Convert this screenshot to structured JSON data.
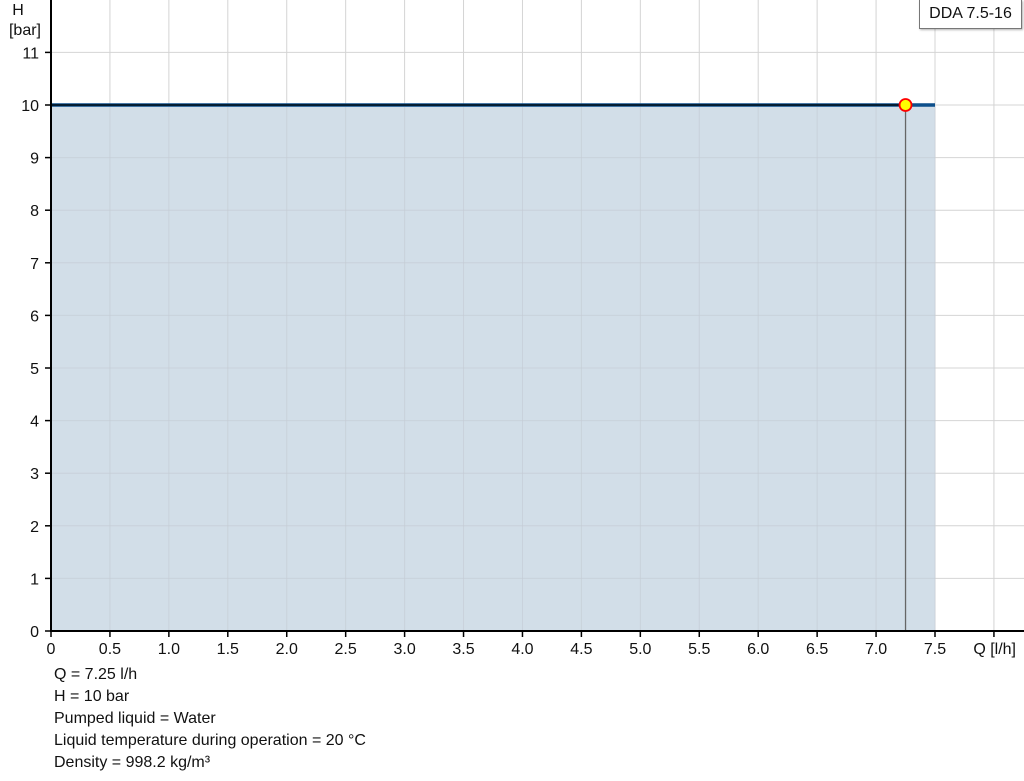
{
  "chart_data": {
    "type": "area",
    "xlabel": "Q [l/h]",
    "ylabel_line1": "H",
    "ylabel_line2": "[bar]",
    "xlim": [
      0,
      8
    ],
    "ylim": [
      0,
      11.5
    ],
    "x_ticks": [
      "0",
      "0.5",
      "1.0",
      "1.5",
      "2.0",
      "2.5",
      "3.0",
      "3.5",
      "4.0",
      "4.5",
      "5.0",
      "5.5",
      "6.0",
      "6.5",
      "7.0",
      "7.5"
    ],
    "y_ticks": [
      "0",
      "1",
      "2",
      "3",
      "4",
      "5",
      "6",
      "7",
      "8",
      "9",
      "10",
      "11"
    ],
    "grid": true,
    "legend_position": "top-right",
    "series": [
      {
        "name": "DDA 7.5-16",
        "x": [
          0,
          7.5
        ],
        "y": [
          10,
          10
        ],
        "color": "#0d4f8b",
        "fill": "#d0dce7"
      }
    ],
    "duty_point": {
      "x": 7.25,
      "y": 10,
      "color": "#ffff00",
      "border": "#ff0000"
    }
  },
  "info": [
    "Q = 7.25 l/h",
    "H = 10 bar",
    "Pumped liquid = Water",
    "Liquid temperature during operation = 20 °C",
    "Density = 998.2 kg/m³"
  ]
}
